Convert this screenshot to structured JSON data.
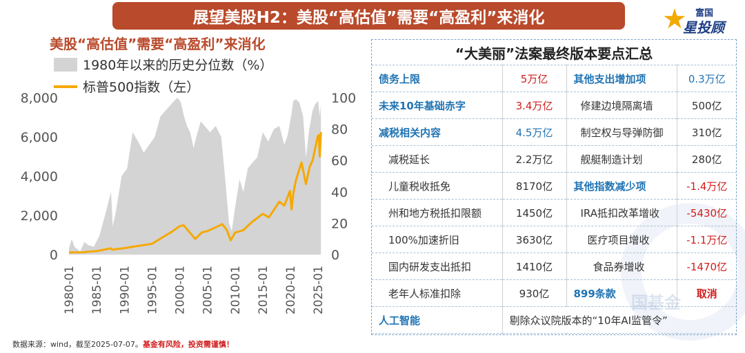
{
  "banner": {
    "title": "展望美股H2：美股“高估值”需要“高盈利”来消化"
  },
  "logo": {
    "line1": "富国",
    "line2": "星投顾"
  },
  "chart_data": {
    "type": "area+line",
    "title": "美股“高估值”需要“高盈利”来消化",
    "legend_area": "1980年以来的历史分位数（%）",
    "legend_line": "标普500指数（左）",
    "colors": {
      "area": "#d4d4d4",
      "line": "#f5a800"
    },
    "left_ticks": [
      "8,000",
      "6,000",
      "4,000",
      "2,000",
      "0"
    ],
    "right_ticks": [
      "100",
      "80",
      "60",
      "40",
      "20",
      "0"
    ],
    "x_ticks": [
      "1980-01",
      "1985-01",
      "1990-01",
      "1995-01",
      "2000-01",
      "2005-01",
      "2010-01",
      "2015-01",
      "2020-01",
      "2025-01"
    ],
    "ylim_left": [
      0,
      8000
    ],
    "ylim_right": [
      0,
      100
    ],
    "xlim": [
      1980.0,
      2025.6
    ],
    "series_left": {
      "name": "标普500指数（左）",
      "x": [
        1980.0,
        1982.5,
        1985.0,
        1987.6,
        1987.8,
        1990.0,
        1992.0,
        1995.0,
        1997.0,
        1998.5,
        2000.0,
        2000.7,
        2002.8,
        2004.0,
        2005.0,
        2007.7,
        2008.5,
        2009.2,
        2010.0,
        2011.5,
        2013.0,
        2015.0,
        2016.1,
        2018.0,
        2018.9,
        2019.9,
        2020.2,
        2020.5,
        2021.0,
        2022.0,
        2022.8,
        2023.5,
        2024.0,
        2024.9,
        2025.1,
        2025.3,
        2025.5
      ],
      "values": [
        110,
        120,
        180,
        320,
        250,
        330,
        420,
        550,
        900,
        1150,
        1450,
        1500,
        800,
        1130,
        1200,
        1550,
        1250,
        730,
        1120,
        1250,
        1650,
        2080,
        1900,
        2700,
        2500,
        3250,
        2300,
        3100,
        3800,
        4700,
        3600,
        4500,
        4800,
        6000,
        6100,
        5000,
        6250
      ]
    },
    "series_right": {
      "name": "1980年以来的历史分位数（%）",
      "x": [
        1980.0,
        1980.5,
        1981.0,
        1982.0,
        1982.8,
        1983.5,
        1984.5,
        1985.5,
        1986.5,
        1987.6,
        1987.9,
        1988.5,
        1989.5,
        1990.5,
        1991.5,
        1992.5,
        1993.5,
        1994.5,
        1995.5,
        1996.5,
        1997.5,
        1998.5,
        1999.0,
        1999.6,
        2000.2,
        2000.8,
        2001.3,
        2001.9,
        2002.5,
        2003.0,
        2003.8,
        2004.5,
        2005.5,
        2006.5,
        2007.5,
        2008.3,
        2008.9,
        2009.4,
        2010.0,
        2010.8,
        2011.5,
        2012.3,
        2013.0,
        2014.0,
        2015.0,
        2016.0,
        2017.0,
        2018.0,
        2018.9,
        2019.5,
        2020.2,
        2020.5,
        2021.0,
        2021.6,
        2022.3,
        2022.8,
        2023.4,
        2024.0,
        2024.5,
        2025.0,
        2025.3,
        2025.5
      ],
      "values": [
        4,
        10,
        5,
        2,
        8,
        6,
        5,
        12,
        25,
        40,
        18,
        28,
        50,
        55,
        78,
        72,
        65,
        70,
        75,
        88,
        92,
        96,
        98,
        100,
        97,
        88,
        82,
        78,
        68,
        75,
        85,
        82,
        78,
        82,
        75,
        45,
        20,
        15,
        30,
        48,
        40,
        55,
        58,
        62,
        78,
        72,
        80,
        82,
        70,
        76,
        90,
        98,
        99,
        97,
        88,
        62,
        80,
        92,
        96,
        98,
        88,
        96
      ]
    }
  },
  "table": {
    "title": "“大美丽”法案最终版本要点汇总",
    "rows": [
      {
        "c1": "债务上限",
        "c2": "5万亿",
        "c3": "其他支出增加项",
        "c4": "0.3万亿"
      },
      {
        "c1": "未来10年基础赤字",
        "c2": "3.4万亿",
        "c3": "修建边境隔离墙",
        "c4": "500亿"
      },
      {
        "c1": "减税相关内容",
        "c2": "4.5万亿",
        "c3": "制空权与导弹防御",
        "c4": "310亿"
      },
      {
        "c1": "减税延长",
        "c2": "2.2万亿",
        "c3": "舰艇制造计划",
        "c4": "280亿"
      },
      {
        "c1": "儿童税收抵免",
        "c2": "8170亿",
        "c3": "其他指数减少项",
        "c4": "-1.4万亿"
      },
      {
        "c1": "州和地方税抵扣限额",
        "c2": "1450亿",
        "c3": "IRA抵扣改革增收",
        "c4": "-5430亿"
      },
      {
        "c1": "100%加速折旧",
        "c2": "3630亿",
        "c3": "医疗项目增收",
        "c4": "-1.1万亿"
      },
      {
        "c1": "国内研发支出抵扣",
        "c2": "1410亿",
        "c3": "食品券增收",
        "c4": "-1470亿"
      },
      {
        "c1": "老年人标准扣除",
        "c2": "930亿",
        "c3": "899条款",
        "c4": "取消"
      },
      {
        "c1": "人工智能",
        "c5": "剔除众议院版本的“10年AI监管令”"
      }
    ]
  },
  "footnote": {
    "source": "数据来源：wind，截至2025-07-07。",
    "warning": "基金有风险，投资需谨慎！"
  },
  "watermark": {
    "text": "国基金"
  }
}
